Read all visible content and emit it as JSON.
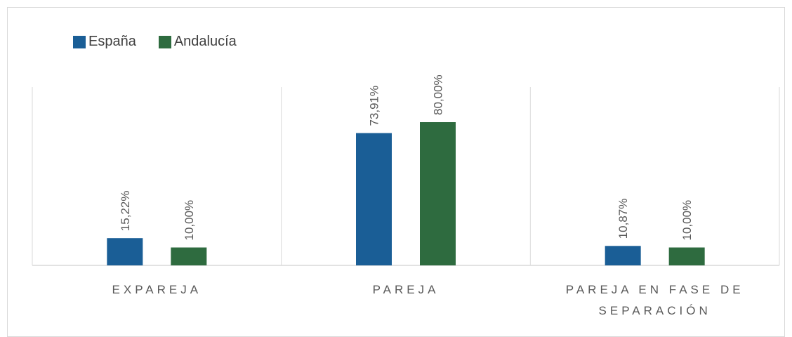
{
  "chart_data": {
    "type": "bar",
    "categories": [
      [
        "EXPAREJA"
      ],
      [
        "PAREJA"
      ],
      [
        "PAREJA EN FASE DE",
        "SEPARACIÓN"
      ]
    ],
    "series": [
      {
        "name": "España",
        "color": "#1a5e96",
        "values": [
          15.22,
          73.91,
          10.87
        ],
        "labels": [
          "15,22%",
          "73,91%",
          "10,87%"
        ]
      },
      {
        "name": "Andalucía",
        "color": "#2e6b3f",
        "values": [
          10.0,
          80.0,
          10.0
        ],
        "labels": [
          "10,00%",
          "80,00%",
          "10,00%"
        ]
      }
    ],
    "ylim": [
      0,
      100
    ],
    "legend": "top-left",
    "grid": false
  }
}
